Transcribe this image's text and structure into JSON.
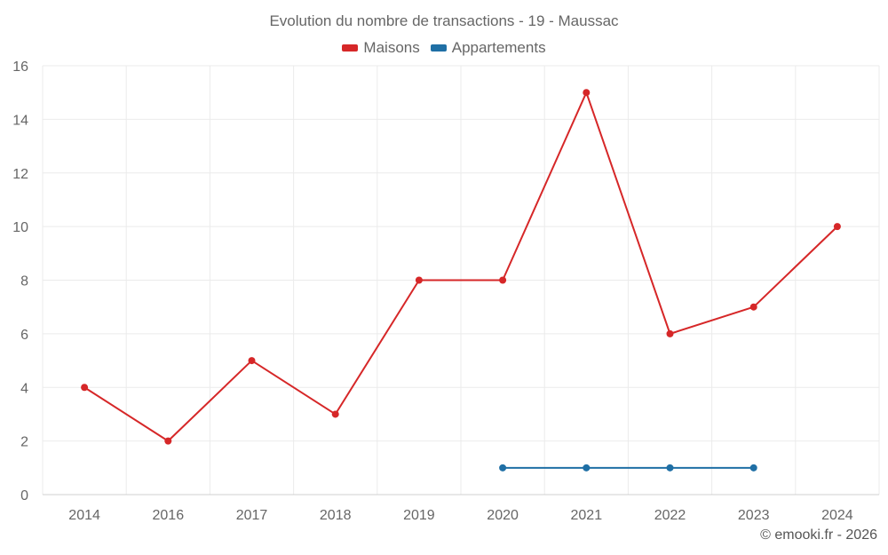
{
  "title": "Evolution du nombre de transactions - 19 - Maussac",
  "credit": "© emooki.fr - 2026",
  "colors": {
    "maisons": "#d62728",
    "appartements": "#1f6fa5",
    "grid": "#ebebeb",
    "axis": "#d0d0d0"
  },
  "chart_data": {
    "type": "line",
    "title": "Evolution du nombre de transactions - 19 - Maussac",
    "categories": [
      "2014",
      "2016",
      "2017",
      "2018",
      "2019",
      "2020",
      "2021",
      "2022",
      "2023",
      "2024"
    ],
    "ylim": [
      0,
      16
    ],
    "yticks": [
      0,
      2,
      4,
      6,
      8,
      10,
      12,
      14,
      16
    ],
    "grid": true,
    "legend_position": "top-center",
    "series": [
      {
        "name": "Maisons",
        "color": "#d62728",
        "values": [
          4,
          2,
          5,
          3,
          8,
          8,
          15,
          6,
          7,
          10
        ]
      },
      {
        "name": "Appartements",
        "color": "#1f6fa5",
        "values": [
          null,
          null,
          null,
          null,
          null,
          1,
          1,
          1,
          1,
          null
        ]
      }
    ]
  }
}
